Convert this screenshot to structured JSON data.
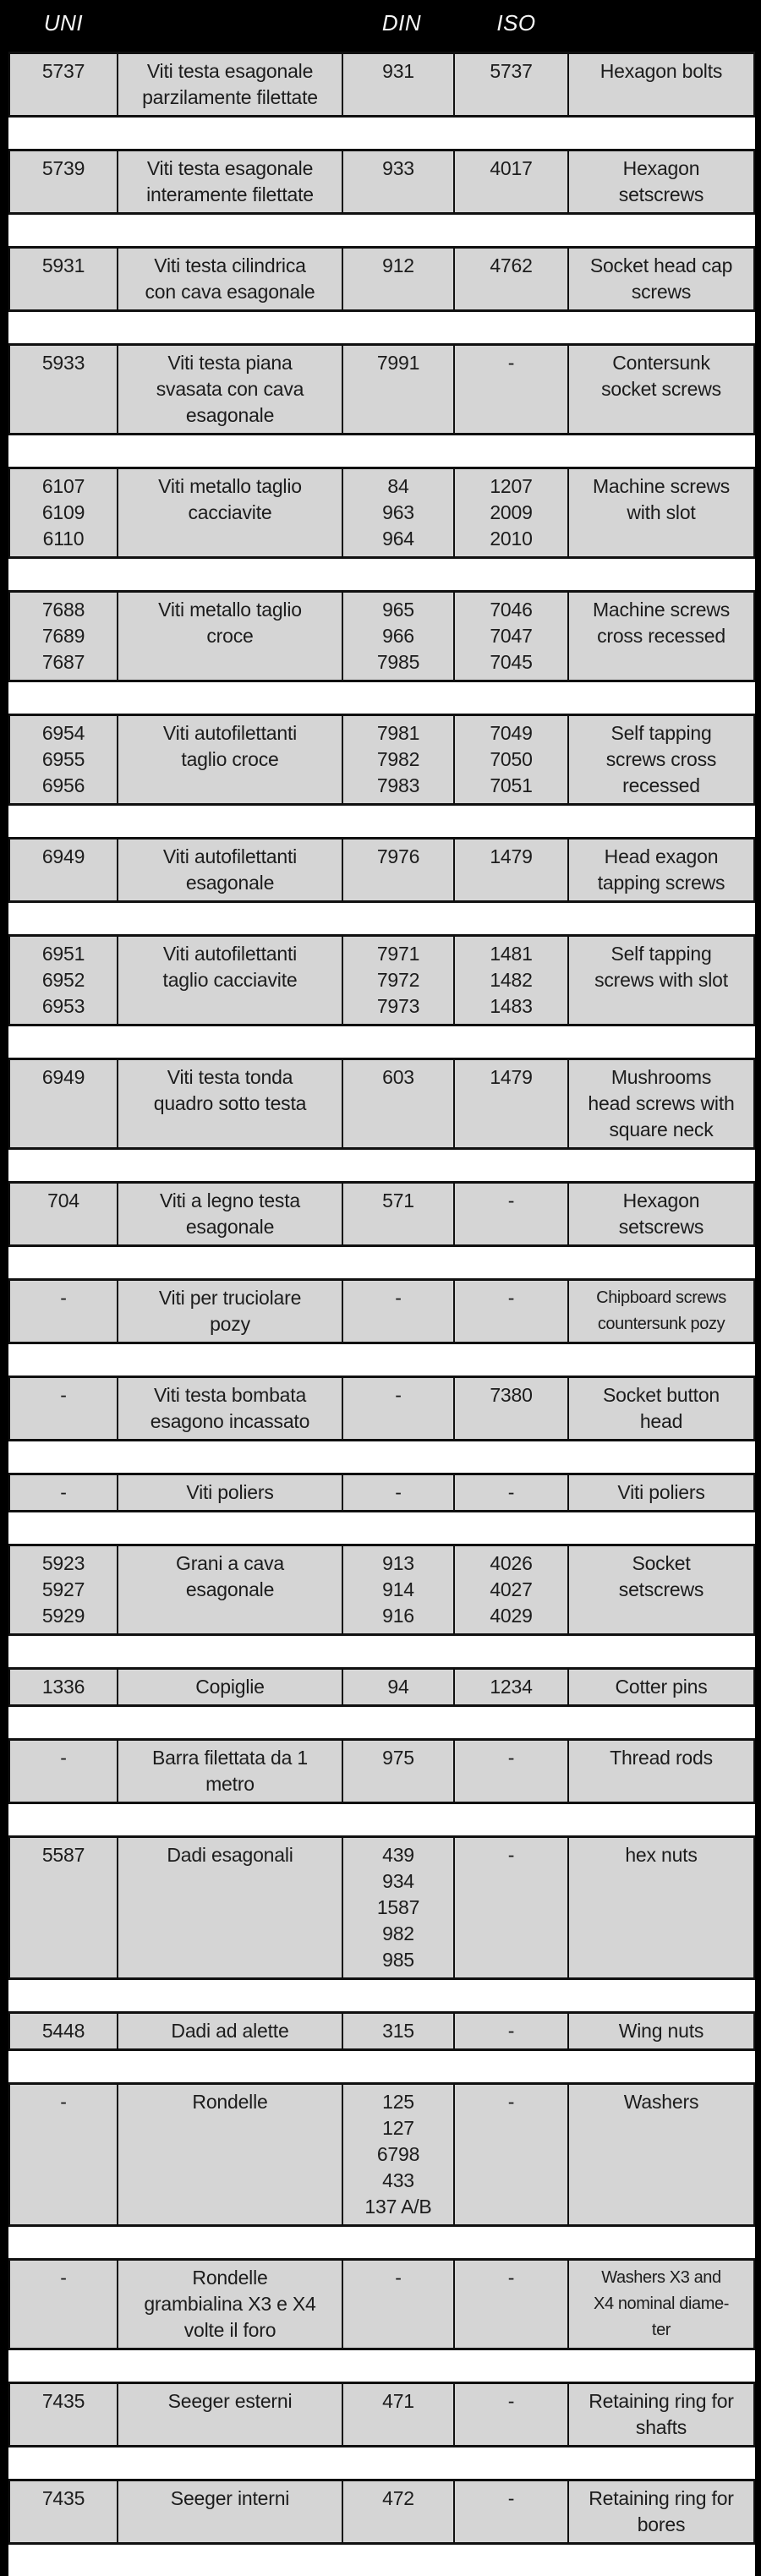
{
  "header": {
    "uni_label": "UNI",
    "din_label": "DIN",
    "iso_label": "ISO"
  },
  "colors": {
    "background": "#000000",
    "row_fill": "#d5d5d5",
    "separator": "#ffffff",
    "border": "#101010",
    "header_text": "#f6f6f6",
    "cell_text": "#1c1c1c"
  },
  "rows": [
    {
      "uni": "5737",
      "description_it": "Viti testa esagonale\nparzilamente filettate",
      "din": "931",
      "iso": "5737",
      "description_en": "Hexagon bolts"
    },
    {
      "uni": "5739",
      "description_it": "Viti testa esagonale\ninteramente filettate",
      "din": "933",
      "iso": "4017",
      "description_en": "Hexagon\nsetscrews"
    },
    {
      "uni": "5931",
      "description_it": "Viti testa cilindrica\ncon cava esagonale",
      "din": "912",
      "iso": "4762",
      "description_en": "Socket head cap\nscrews"
    },
    {
      "uni": "5933",
      "description_it": "Viti testa piana\nsvasata con cava\nesagonale",
      "din": "7991",
      "iso": "-",
      "description_en": "Contersunk\nsocket screws"
    },
    {
      "uni": "6107\n6109\n6110",
      "description_it": "Viti metallo taglio\ncacciavite",
      "din": "84\n963\n964",
      "iso": "1207\n2009\n2010",
      "description_en": "Machine screws\nwith slot"
    },
    {
      "uni": "7688\n7689\n7687",
      "description_it": "Viti metallo taglio\ncroce",
      "din": "965\n966\n7985",
      "iso": "7046\n7047\n7045",
      "description_en": "Machine screws\ncross recessed"
    },
    {
      "uni": "6954\n6955\n6956",
      "description_it": "Viti autofilettanti\ntaglio croce",
      "din": "7981\n7982\n7983",
      "iso": "7049\n7050\n7051",
      "description_en": "Self tapping\nscrews cross\nrecessed"
    },
    {
      "uni": "6949",
      "description_it": "Viti autofilettanti\nesagonale",
      "din": "7976",
      "iso": "1479",
      "description_en": "Head exagon\ntapping screws"
    },
    {
      "uni": "6951\n6952\n6953",
      "description_it": "Viti autofilettanti\ntaglio cacciavite",
      "din": "7971\n7972\n7973",
      "iso": "1481\n1482\n1483",
      "description_en": "Self tapping\nscrews with slot"
    },
    {
      "uni": "6949",
      "description_it": "Viti testa tonda\nquadro sotto testa",
      "din": "603",
      "iso": "1479",
      "description_en": "Mushrooms\nhead screws with\nsquare neck"
    },
    {
      "uni": "704",
      "description_it": "Viti a legno testa\nesagonale",
      "din": "571",
      "iso": "-",
      "description_en": "Hexagon\nsetscrews"
    },
    {
      "uni": "-",
      "description_it": "Viti per truciolare\npozy",
      "din": "-",
      "iso": "-",
      "description_en": "Chipboard screws\ncountersunk pozy",
      "en_small": true
    },
    {
      "uni": "-",
      "description_it": "Viti testa bombata\nesagono incassato",
      "din": "-",
      "iso": "7380",
      "description_en": "Socket button\nhead"
    },
    {
      "uni": "-",
      "description_it": "Viti poliers",
      "din": "-",
      "iso": "-",
      "description_en": "Viti poliers"
    },
    {
      "uni": "5923\n5927\n5929",
      "description_it": "Grani a cava\nesagonale",
      "din": "913\n914\n916",
      "iso": "4026\n4027\n4029",
      "description_en": "Socket\nsetscrews"
    },
    {
      "uni": "1336",
      "description_it": "Copiglie",
      "din": "94",
      "iso": "1234",
      "description_en": "Cotter pins"
    },
    {
      "uni": "-",
      "description_it": "Barra filettata da 1\nmetro",
      "din": "975",
      "iso": "-",
      "description_en": "Thread rods"
    },
    {
      "uni": "5587",
      "description_it": "Dadi esagonali",
      "din": "439\n934\n1587\n982\n985",
      "iso": "-",
      "description_en": "hex nuts"
    },
    {
      "uni": "5448",
      "description_it": "Dadi ad alette",
      "din": "315",
      "iso": "-",
      "description_en": "Wing nuts"
    },
    {
      "uni": "-",
      "description_it": "Rondelle",
      "din": "125\n127\n6798\n433\n137 A/B",
      "iso": "-",
      "description_en": "Washers"
    },
    {
      "uni": "-",
      "description_it": "Rondelle\ngrambialina X3 e X4\nvolte il foro",
      "din": "-",
      "iso": "-",
      "description_en": "Washers X3 and\nX4 nominal diame-\nter",
      "en_small": true
    },
    {
      "uni": "7435",
      "description_it": "Seeger esterni",
      "din": "471",
      "iso": "-",
      "description_en": "Retaining ring for\nshafts"
    },
    {
      "uni": "7435",
      "description_it": "Seeger interni",
      "din": "472",
      "iso": "-",
      "description_en": "Retaining ring for\nbores"
    }
  ]
}
